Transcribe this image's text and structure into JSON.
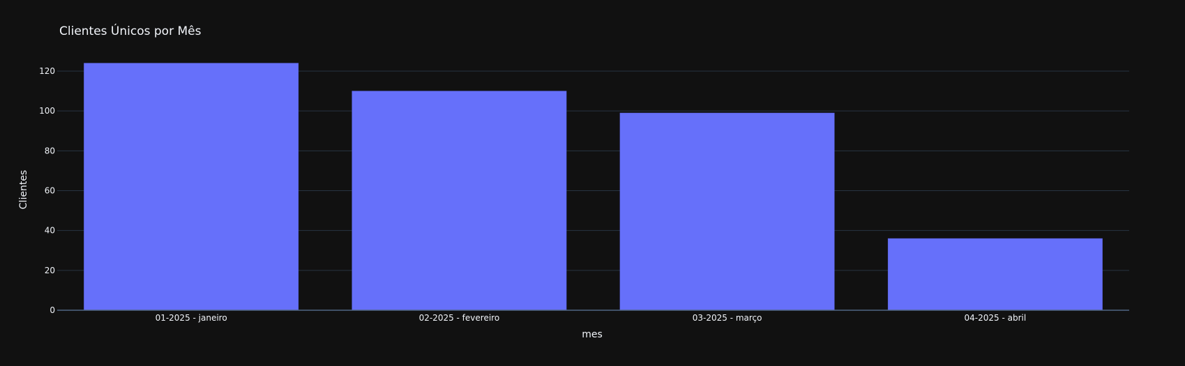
{
  "chart_data": {
    "type": "bar",
    "title": "Clientes Únicos por Mês",
    "xlabel": "mes",
    "ylabel": "Clientes",
    "categories": [
      "01-2025 - janeiro",
      "02-2025 - fevereiro",
      "03-2025 - março",
      "04-2025 - abril"
    ],
    "values": [
      124,
      110,
      99,
      36
    ],
    "ylim": [
      0,
      130.5
    ],
    "yticks": [
      0,
      20,
      40,
      60,
      80,
      100,
      120
    ],
    "grid": true,
    "colors": {
      "background": "#111111",
      "bar": "#6670fa",
      "grid": "#283442",
      "text": "#f2f5fa"
    }
  }
}
